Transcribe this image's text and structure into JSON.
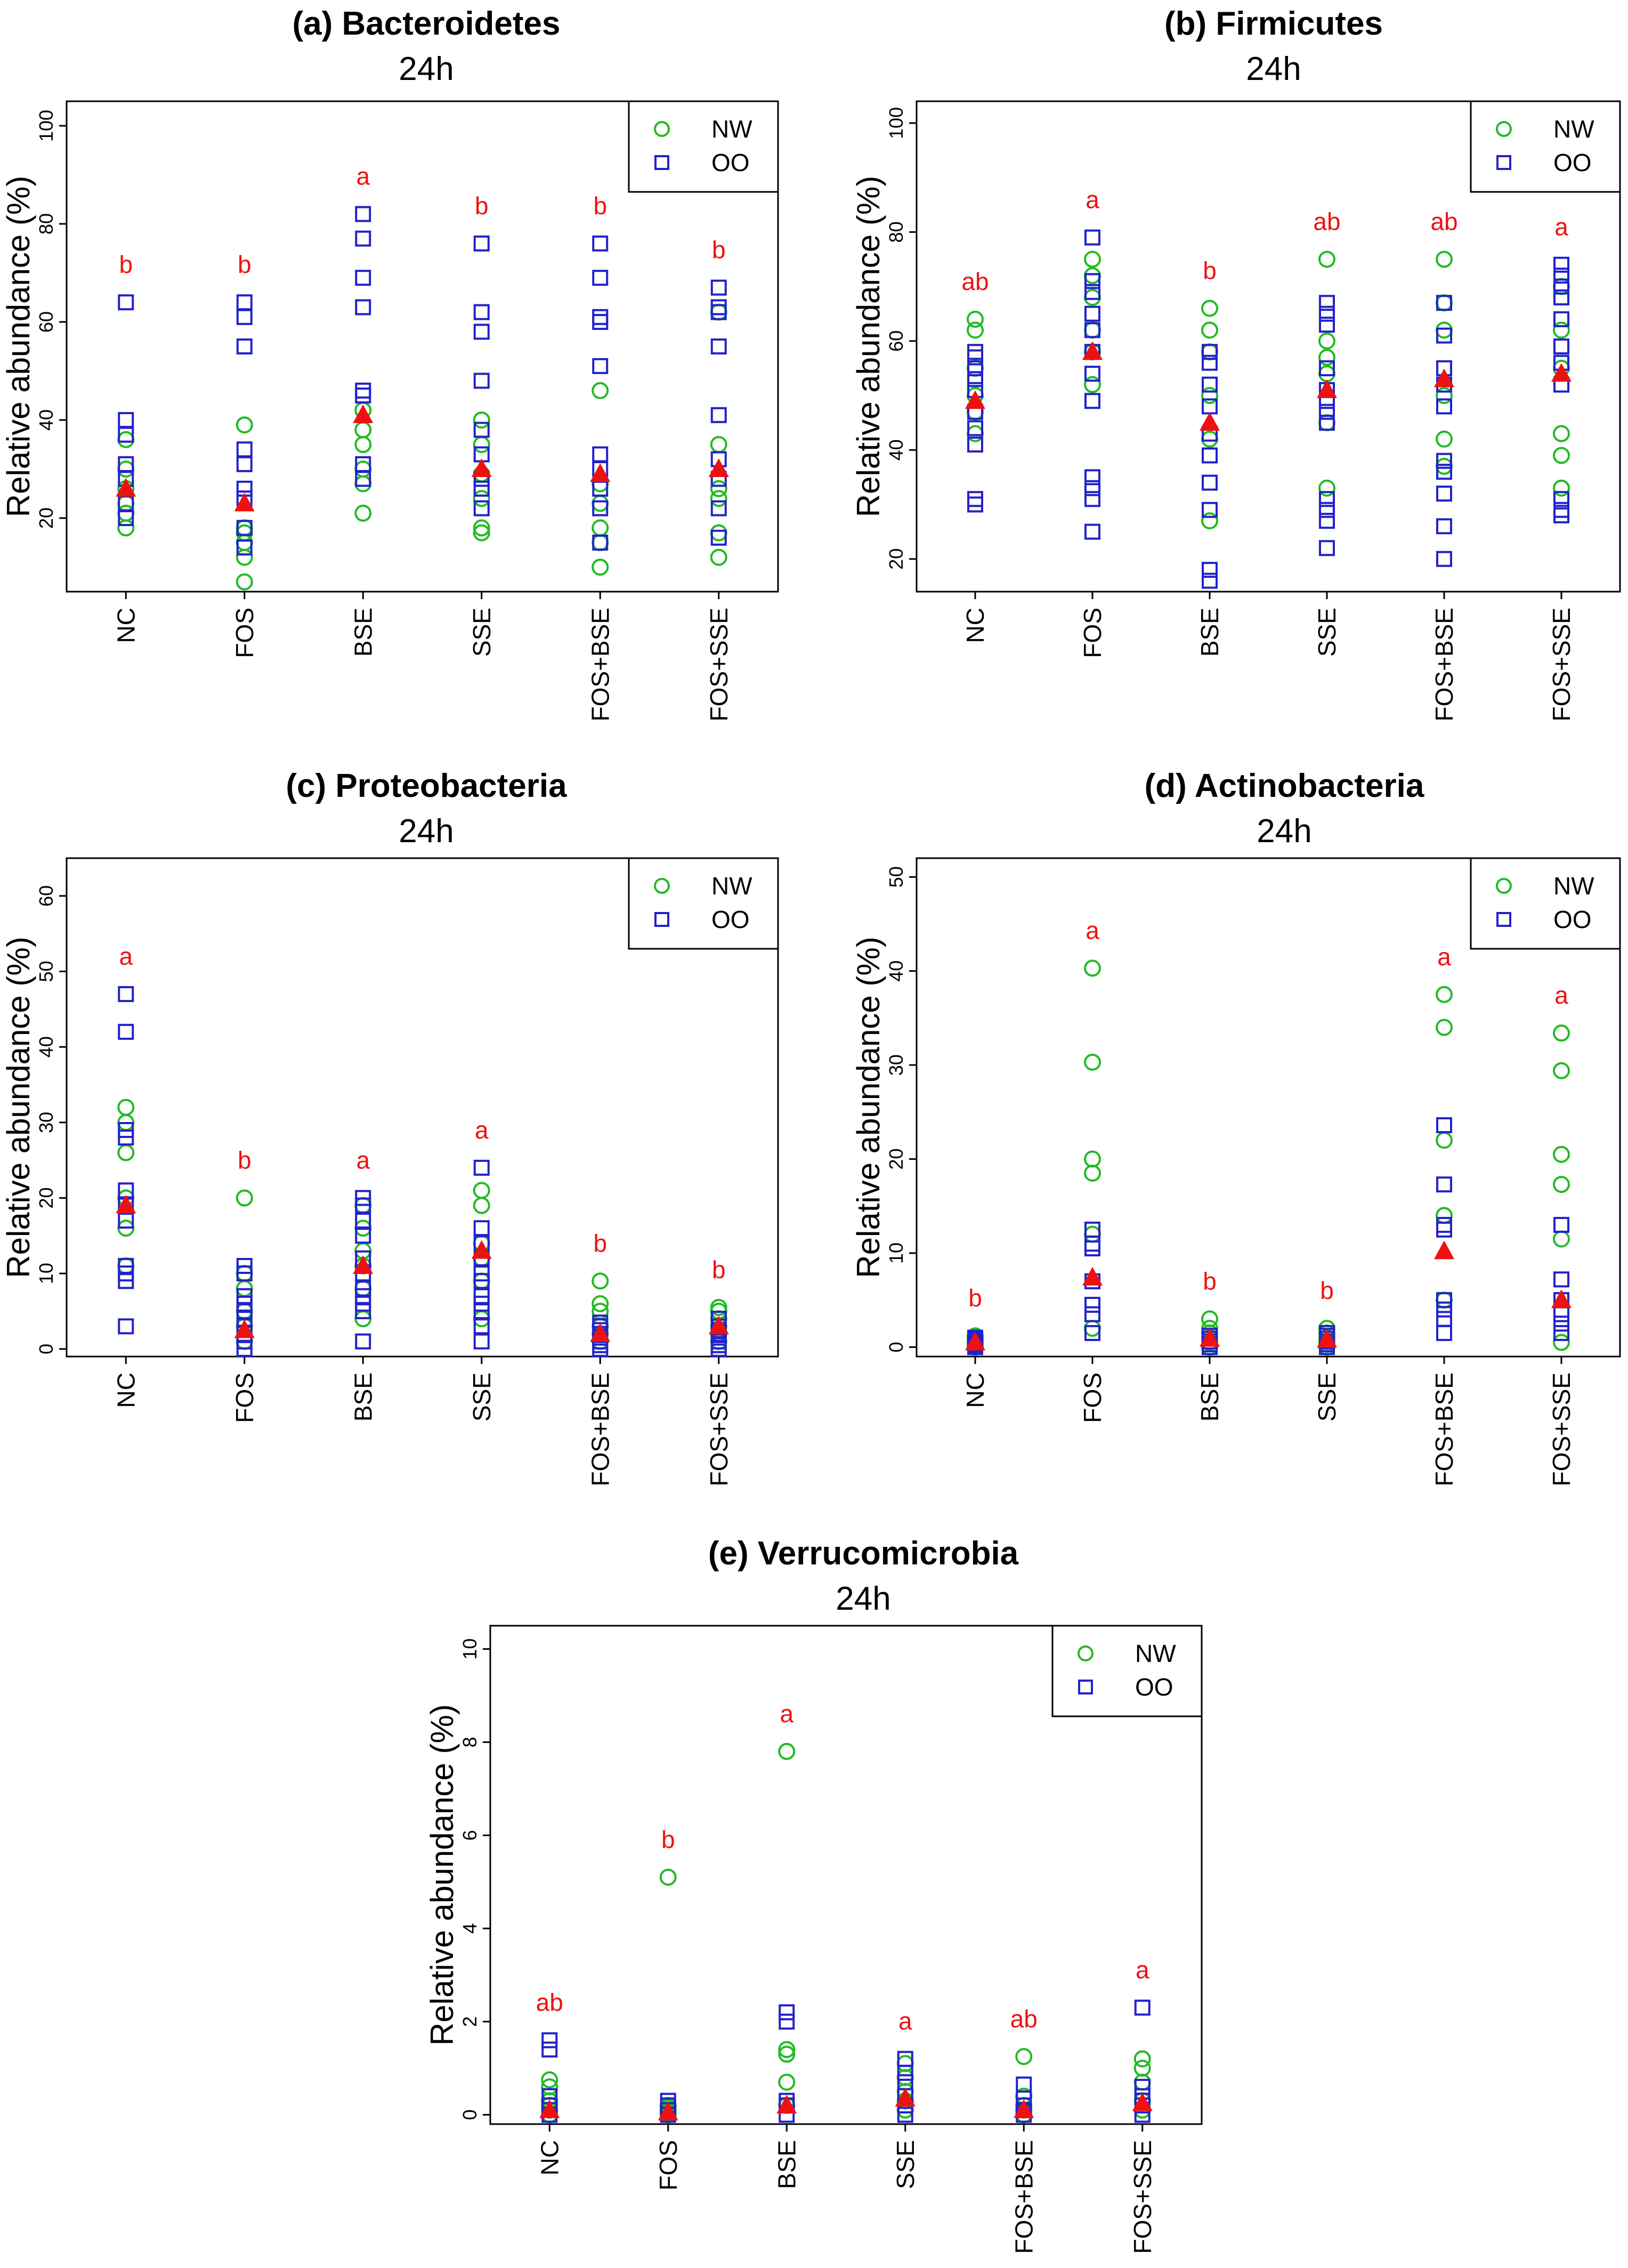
{
  "figure": {
    "ylabel": "Relative abundance (%)"
  },
  "legend": [
    {
      "name": "NW",
      "marker": "circle",
      "color": "#22bb22"
    },
    {
      "name": "OO",
      "marker": "square",
      "color": "#2222cc"
    }
  ],
  "mean_color": "#ee1111",
  "sig_color": "#ee1111",
  "chart_data": [
    {
      "id": "a",
      "type": "scatter",
      "title": "(a) Bacteroidetes",
      "subtitle": "24h",
      "ylabel": "Relative abundance (%)",
      "categories": [
        "NC",
        "FOS",
        "BSE",
        "SSE",
        "FOS+BSE",
        "FOS+SSE"
      ],
      "ylim": [
        5,
        105
      ],
      "yticks": [
        20,
        40,
        60,
        80,
        100
      ],
      "NW": [
        [
          18,
          21,
          23,
          26,
          30,
          36
        ],
        [
          7,
          12,
          15,
          17,
          18,
          39
        ],
        [
          21,
          27,
          30,
          35,
          38,
          42
        ],
        [
          17,
          18,
          24,
          29,
          35,
          40
        ],
        [
          10,
          15,
          18,
          23,
          27,
          46
        ],
        [
          12,
          17,
          24,
          26,
          35,
          62
        ]
      ],
      "OO": [
        [
          20,
          23,
          28,
          31,
          37,
          40,
          64
        ],
        [
          14,
          18,
          24,
          26,
          31,
          34,
          55,
          61,
          64
        ],
        [
          28,
          31,
          45,
          46,
          63,
          69,
          77,
          82
        ],
        [
          22,
          26,
          28,
          33,
          38,
          48,
          58,
          62,
          76
        ],
        [
          15,
          22,
          26,
          30,
          33,
          51,
          60,
          61,
          69,
          76
        ],
        [
          16,
          22,
          28,
          32,
          41,
          55,
          62,
          63,
          67
        ]
      ],
      "means": [
        26,
        23,
        41,
        30,
        29,
        30
      ],
      "letters": [
        "b",
        "b",
        "a",
        "b",
        "b",
        "b"
      ]
    },
    {
      "id": "b",
      "type": "scatter",
      "title": "(b) Firmicutes",
      "subtitle": "24h",
      "ylabel": "Relative abundance (%)",
      "categories": [
        "NC",
        "FOS",
        "BSE",
        "SSE",
        "FOS+BSE",
        "FOS+SSE"
      ],
      "ylim": [
        14,
        104
      ],
      "yticks": [
        20,
        40,
        60,
        80,
        100
      ],
      "NW": [
        [
          43,
          47,
          50,
          55,
          62,
          64
        ],
        [
          52,
          58,
          62,
          68,
          72,
          75
        ],
        [
          27,
          42,
          50,
          58,
          62,
          66
        ],
        [
          33,
          45,
          54,
          57,
          60,
          75
        ],
        [
          37,
          42,
          50,
          62,
          67,
          75
        ],
        [
          33,
          39,
          43,
          55,
          62,
          70
        ]
      ],
      "OO": [
        [
          30,
          31,
          41,
          44,
          47,
          51,
          53,
          55,
          57,
          58
        ],
        [
          25,
          31,
          33,
          35,
          49,
          54,
          58,
          62,
          65,
          69,
          71,
          79
        ],
        [
          16,
          18,
          29,
          34,
          39,
          43,
          48,
          52,
          56,
          58
        ],
        [
          22,
          27,
          29,
          31,
          45,
          47,
          49,
          51,
          55,
          63,
          65,
          67
        ],
        [
          20,
          26,
          32,
          36,
          38,
          48,
          52,
          55,
          61,
          67
        ],
        [
          28,
          29,
          31,
          52,
          56,
          59,
          64,
          68,
          70,
          72,
          74
        ]
      ],
      "means": [
        49,
        58,
        45,
        51,
        53,
        54
      ],
      "letters": [
        "ab",
        "a",
        "b",
        "ab",
        "ab",
        "a"
      ]
    },
    {
      "id": "c",
      "type": "scatter",
      "title": "(c) Proteobacteria",
      "subtitle": "24h",
      "ylabel": "Relative abundance (%)",
      "categories": [
        "NC",
        "FOS",
        "BSE",
        "SSE",
        "FOS+BSE",
        "FOS+SSE"
      ],
      "ylim": [
        -1,
        65
      ],
      "yticks": [
        0,
        10,
        20,
        30,
        40,
        50,
        60
      ],
      "NW": [
        [
          11,
          16,
          20,
          26,
          30,
          32
        ],
        [
          1,
          3,
          5,
          8,
          10,
          20
        ],
        [
          4,
          8,
          11,
          13,
          16,
          19
        ],
        [
          4,
          9,
          12,
          14,
          19,
          21
        ],
        [
          1,
          2,
          3,
          5,
          6,
          9
        ],
        [
          1,
          2,
          3,
          4,
          5,
          5.5
        ]
      ],
      "OO": [
        [
          3,
          9,
          10,
          11,
          17,
          19,
          21,
          28,
          29,
          42,
          47
        ],
        [
          0,
          1,
          2,
          3,
          4,
          5,
          6,
          7,
          10,
          11
        ],
        [
          1,
          5,
          6,
          7,
          8,
          10,
          12,
          15,
          17,
          19,
          20
        ],
        [
          1,
          3,
          5,
          6,
          7,
          9,
          10,
          12,
          14,
          16,
          24
        ],
        [
          0,
          0.5,
          1,
          1.5,
          2,
          2.5,
          3,
          3.5
        ],
        [
          0,
          0.5,
          1,
          1.5,
          2,
          2.5,
          3,
          4
        ]
      ],
      "means": [
        19,
        2.5,
        11,
        13,
        2,
        3
      ],
      "letters": [
        "a",
        "b",
        "a",
        "a",
        "b",
        "b"
      ]
    },
    {
      "id": "d",
      "type": "scatter",
      "title": "(d) Actinobacteria",
      "subtitle": "24h",
      "ylabel": "Relative abundance (%)",
      "categories": [
        "NC",
        "FOS",
        "BSE",
        "SSE",
        "FOS+BSE",
        "FOS+SSE"
      ],
      "ylim": [
        -1,
        52
      ],
      "yticks": [
        0,
        10,
        20,
        30,
        40,
        50
      ],
      "NW": [
        [
          0,
          0.3,
          0.5,
          0.8,
          1.0,
          1.2
        ],
        [
          2,
          12,
          18.5,
          20,
          30.3,
          40.3
        ],
        [
          0,
          0.5,
          1,
          1.5,
          2,
          3
        ],
        [
          0,
          0.3,
          0.6,
          1,
          1.5,
          2
        ],
        [
          5,
          14,
          22,
          34,
          37.5
        ],
        [
          0.5,
          11.5,
          17.3,
          20.5,
          29.4,
          33.4
        ]
      ],
      "OO": [
        [
          0,
          0.2,
          0.4,
          0.6,
          0.8,
          1.0
        ],
        [
          1.5,
          3.5,
          4.5,
          7,
          10.5,
          11,
          12.5
        ],
        [
          0,
          0.3,
          0.6,
          0.9,
          1.2
        ],
        [
          0,
          0.3,
          0.6,
          0.9,
          1.2,
          1.5
        ],
        [
          1.5,
          3,
          4,
          5,
          12.5,
          13,
          17.3,
          23.6
        ],
        [
          1.5,
          2.5,
          3.5,
          5,
          7.2,
          13
        ]
      ],
      "means": [
        0.5,
        7.4,
        0.9,
        0.8,
        10.2,
        5
      ],
      "letters": [
        "b",
        "a",
        "b",
        "b",
        "a",
        "a"
      ]
    },
    {
      "id": "e",
      "type": "scatter",
      "title": "(e) Verrucomicrobia",
      "subtitle": "24h",
      "ylabel": "Relative abundance (%)",
      "categories": [
        "NC",
        "FOS",
        "BSE",
        "SSE",
        "FOS+BSE",
        "FOS+SSE"
      ],
      "ylim": [
        -0.2,
        10.5
      ],
      "yticks": [
        0,
        2,
        4,
        6,
        8,
        10
      ],
      "NW": [
        [
          0,
          0.1,
          0.2,
          0.3,
          0.6,
          0.75
        ],
        [
          0,
          0.05,
          0.1,
          0.15,
          0.2,
          5.1
        ],
        [
          0.2,
          0.7,
          1.3,
          1.4,
          7.8
        ],
        [
          0.1,
          0.3,
          0.5,
          0.8,
          1.1
        ],
        [
          0,
          0.1,
          0.2,
          0.4,
          1.25
        ],
        [
          0.1,
          0.3,
          0.7,
          1.0,
          1.2
        ]
      ],
      "OO": [
        [
          0,
          0.2,
          0.4,
          1.4,
          1.6
        ],
        [
          0,
          0.1,
          0.2,
          0.3
        ],
        [
          0,
          0.2,
          0.3,
          2.0,
          2.2
        ],
        [
          0,
          0.2,
          0.4,
          0.7,
          0.9,
          1.2
        ],
        [
          0,
          0.1,
          0.2,
          0.35,
          0.65
        ],
        [
          0,
          0.2,
          0.4,
          0.6,
          2.3
        ]
      ],
      "means": [
        0.1,
        0.05,
        0.2,
        0.35,
        0.1,
        0.25
      ],
      "letters": [
        "ab",
        "b",
        "a",
        "a",
        "ab",
        "a"
      ]
    }
  ]
}
